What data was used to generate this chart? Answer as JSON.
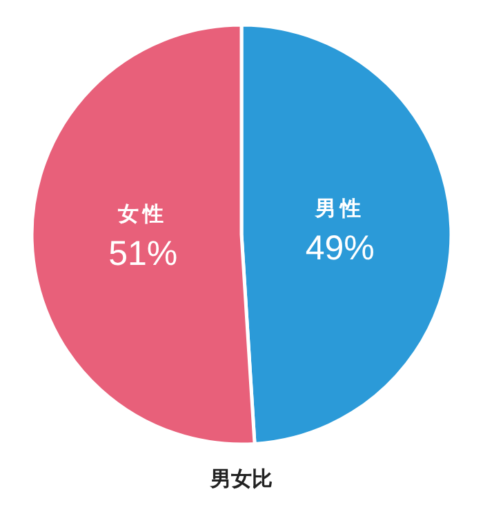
{
  "chart_data": {
    "type": "pie",
    "title": "男女比",
    "categories": [
      "男性",
      "女性"
    ],
    "values": [
      49,
      51
    ],
    "colors": [
      "#2b9ad8",
      "#e8607a"
    ],
    "value_labels": [
      "49%",
      "51%"
    ]
  }
}
